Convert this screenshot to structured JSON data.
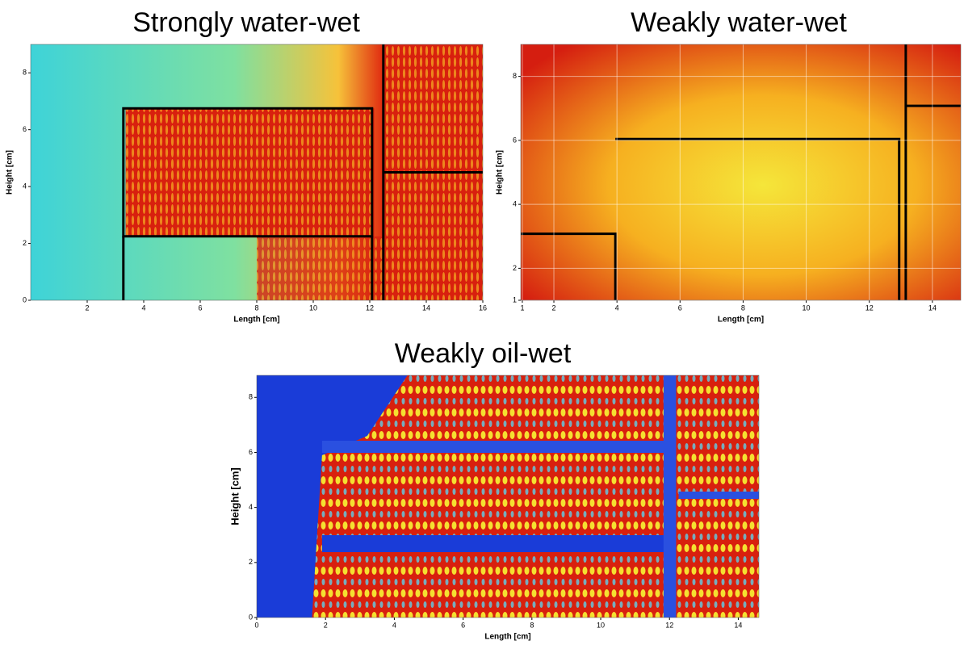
{
  "chart_data": [
    {
      "type": "heatmap",
      "title": "Strongly water-wet",
      "xlabel": "Length [cm]",
      "ylabel": "Height [cm]",
      "xlim": [
        0,
        16
      ],
      "ylim": [
        0,
        9
      ],
      "xticks": [
        2,
        4,
        6,
        8,
        10,
        12,
        14,
        16
      ],
      "yticks": [
        0,
        2,
        4,
        6,
        8
      ]
    },
    {
      "type": "heatmap",
      "title": "Weakly water-wet",
      "xlabel": "Length [cm]",
      "ylabel": "Height [cm]",
      "xlim": [
        0.95,
        14.9
      ],
      "ylim": [
        1,
        9
      ],
      "xticks": [
        1,
        2,
        4,
        6,
        8,
        10,
        12,
        14
      ],
      "yticks": [
        1,
        2,
        4,
        6,
        8
      ],
      "grid": true
    },
    {
      "type": "heatmap",
      "title": "Weakly oil-wet",
      "xlabel": "Length [cm]",
      "ylabel": "Height [cm]",
      "xlim": [
        0,
        14.6
      ],
      "ylim": [
        0,
        8.8
      ],
      "xticks": [
        0,
        2,
        4,
        6,
        8,
        10,
        12,
        14
      ],
      "yticks": [
        0,
        2,
        4,
        6,
        8
      ]
    }
  ]
}
